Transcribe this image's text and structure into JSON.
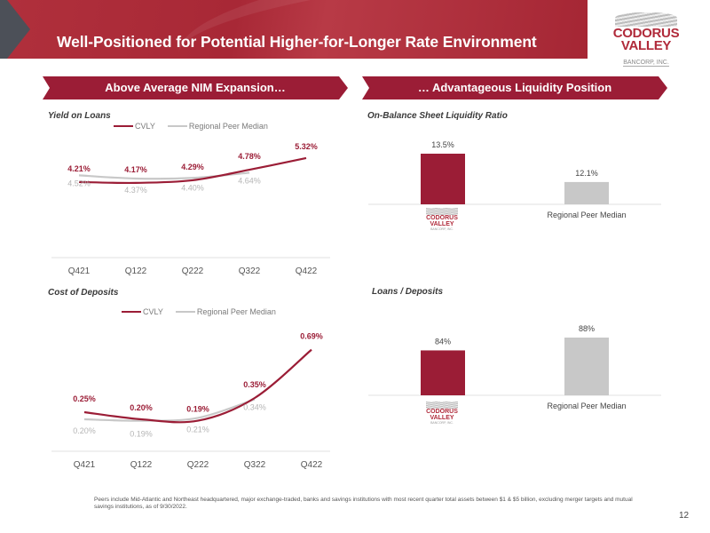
{
  "header": {
    "title": "Well-Positioned for Potential Higher-for-Longer Rate Environment",
    "logo": {
      "line1": "CODORUS",
      "line2": "VALLEY",
      "line3": "BANCORP, INC."
    }
  },
  "left_section": {
    "banner": "Above Average NIM Expansion…"
  },
  "right_section": {
    "banner": "… Advantageous Liquidity Position"
  },
  "colors": {
    "cvly": "#9b1d36",
    "peer": "#c8c8c8",
    "banner": "#9b1d36"
  },
  "chart_data": [
    {
      "id": "yield_on_loans",
      "type": "line",
      "title": "Yield on Loans",
      "categories": [
        "Q421",
        "Q122",
        "Q222",
        "Q322",
        "Q422"
      ],
      "series": [
        {
          "name": "CVLY",
          "values": [
            4.21,
            4.17,
            4.29,
            4.78,
            5.32
          ],
          "labels": [
            "4.21%",
            "4.17%",
            "4.29%",
            "4.78%",
            "5.32%"
          ]
        },
        {
          "name": "Regional Peer Median",
          "values": [
            4.52,
            4.37,
            4.4,
            4.64,
            null
          ],
          "labels": [
            "4.52%",
            "4.37%",
            "4.40%",
            "4.64%",
            ""
          ]
        }
      ],
      "legend": "top-center",
      "grid": false
    },
    {
      "id": "cost_of_deposits",
      "type": "line",
      "title": "Cost of Deposits",
      "categories": [
        "Q421",
        "Q122",
        "Q222",
        "Q322",
        "Q422"
      ],
      "series": [
        {
          "name": "CVLY",
          "values": [
            0.25,
            0.2,
            0.19,
            0.35,
            0.69
          ],
          "labels": [
            "0.25%",
            "0.20%",
            "0.19%",
            "0.35%",
            "0.69%"
          ]
        },
        {
          "name": "Regional Peer Median",
          "values": [
            0.2,
            0.19,
            0.21,
            0.34,
            null
          ],
          "labels": [
            "0.20%",
            "0.19%",
            "0.21%",
            "0.34%",
            ""
          ]
        }
      ],
      "legend": "top-center",
      "grid": false
    },
    {
      "id": "liquidity_ratio",
      "type": "bar",
      "title": "On-Balance Sheet Liquidity Ratio",
      "categories": [
        "CVLY",
        "Regional Peer Median"
      ],
      "values": [
        13.5,
        12.1
      ],
      "labels": [
        "13.5%",
        "12.1%"
      ]
    },
    {
      "id": "loans_deposits",
      "type": "bar",
      "title": "Loans / Deposits",
      "categories": [
        "CVLY",
        "Regional Peer Median"
      ],
      "values": [
        84,
        88
      ],
      "labels": [
        "84%",
        "88%"
      ]
    }
  ],
  "footnote": "Peers include Mid-Atlantic and Northeast headquartered, major exchange-traded, banks and savings institutions with most recent quarter total assets between $1 & $5 billion, excluding merger targets and mutual savings institutions, as of 9/30/2022.",
  "page_number": "12"
}
